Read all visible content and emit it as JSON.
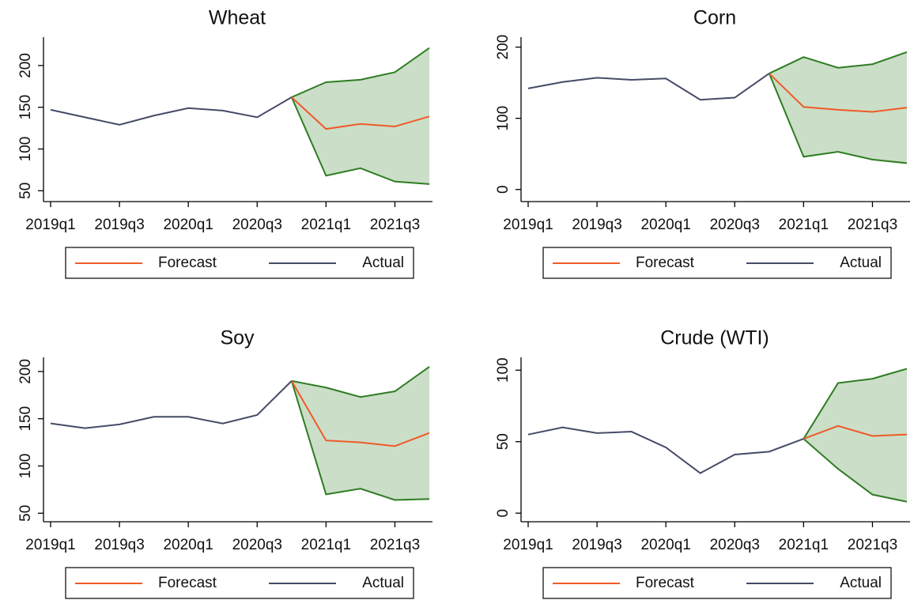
{
  "chart_data": [
    {
      "type": "line",
      "title": "Wheat",
      "categories": [
        "2019q1",
        null,
        "2019q3",
        null,
        "2020q1",
        null,
        "2020q3",
        null,
        "2021q1",
        null,
        "2021q3",
        null
      ],
      "series": [
        {
          "name": "Forecast",
          "color": "#f05a28",
          "values": [
            null,
            null,
            null,
            null,
            null,
            null,
            null,
            162,
            124,
            130,
            127,
            139
          ]
        },
        {
          "name": "Actual",
          "color": "#454b66",
          "values": [
            147,
            138,
            129,
            140,
            149,
            146,
            138,
            162,
            null,
            null,
            null,
            null
          ]
        }
      ],
      "band": {
        "color": "#2e7d22",
        "upper": [
          null,
          null,
          null,
          null,
          null,
          null,
          null,
          162,
          180,
          183,
          192,
          221
        ],
        "lower": [
          null,
          null,
          null,
          null,
          null,
          null,
          null,
          162,
          68,
          77,
          61,
          58
        ]
      },
      "ylim": [
        37,
        234
      ],
      "yticks": [
        50,
        100,
        150,
        200
      ],
      "legend": "bottom"
    },
    {
      "type": "line",
      "title": "Corn",
      "categories": [
        "2019q1",
        null,
        "2019q3",
        null,
        "2020q1",
        null,
        "2020q3",
        null,
        "2021q1",
        null,
        "2021q3",
        null
      ],
      "series": [
        {
          "name": "Forecast",
          "color": "#f05a28",
          "values": [
            null,
            null,
            null,
            null,
            null,
            null,
            null,
            163,
            116,
            112,
            109,
            115
          ]
        },
        {
          "name": "Actual",
          "color": "#454b66",
          "values": [
            142,
            151,
            157,
            154,
            156,
            126,
            129,
            163,
            null,
            null,
            null,
            null
          ]
        }
      ],
      "band": {
        "color": "#2e7d22",
        "upper": [
          null,
          null,
          null,
          null,
          null,
          null,
          null,
          163,
          186,
          171,
          176,
          193
        ],
        "lower": [
          null,
          null,
          null,
          null,
          null,
          null,
          null,
          163,
          46,
          53,
          42,
          37
        ]
      },
      "ylim": [
        -17,
        214
      ],
      "yticks": [
        0,
        100,
        200
      ],
      "legend": "bottom"
    },
    {
      "type": "line",
      "title": "Soy",
      "categories": [
        "2019q1",
        null,
        "2019q3",
        null,
        "2020q1",
        null,
        "2020q3",
        null,
        "2021q1",
        null,
        "2021q3",
        null
      ],
      "series": [
        {
          "name": "Forecast",
          "color": "#f05a28",
          "values": [
            null,
            null,
            null,
            null,
            null,
            null,
            null,
            190,
            127,
            125,
            121,
            135
          ]
        },
        {
          "name": "Actual",
          "color": "#454b66",
          "values": [
            145,
            140,
            144,
            152,
            152,
            145,
            154,
            190,
            null,
            null,
            null,
            null
          ]
        }
      ],
      "band": {
        "color": "#2e7d22",
        "upper": [
          null,
          null,
          null,
          null,
          null,
          null,
          null,
          190,
          183,
          173,
          179,
          205
        ],
        "lower": [
          null,
          null,
          null,
          null,
          null,
          null,
          null,
          190,
          70,
          76,
          64,
          65
        ]
      },
      "ylim": [
        41,
        215
      ],
      "yticks": [
        50,
        100,
        150,
        200
      ],
      "legend": "bottom"
    },
    {
      "type": "line",
      "title": "Crude (WTI)",
      "categories": [
        "2019q1",
        null,
        "2019q3",
        null,
        "2020q1",
        null,
        "2020q3",
        null,
        "2021q1",
        null,
        "2021q3",
        null
      ],
      "series": [
        {
          "name": "Forecast",
          "color": "#f05a28",
          "values": [
            null,
            null,
            null,
            null,
            null,
            null,
            null,
            null,
            52,
            61,
            54,
            55
          ]
        },
        {
          "name": "Actual",
          "color": "#454b66",
          "values": [
            55,
            60,
            56,
            57,
            46,
            28,
            41,
            43,
            52,
            null,
            null,
            null
          ]
        }
      ],
      "band": {
        "color": "#2e7d22",
        "upper": [
          null,
          null,
          null,
          null,
          null,
          null,
          null,
          null,
          52,
          91,
          94,
          101
        ],
        "lower": [
          null,
          null,
          null,
          null,
          null,
          null,
          null,
          null,
          52,
          31,
          13,
          8
        ]
      },
      "ylim": [
        -6,
        109
      ],
      "yticks": [
        0,
        50,
        100
      ],
      "legend": "bottom"
    }
  ]
}
